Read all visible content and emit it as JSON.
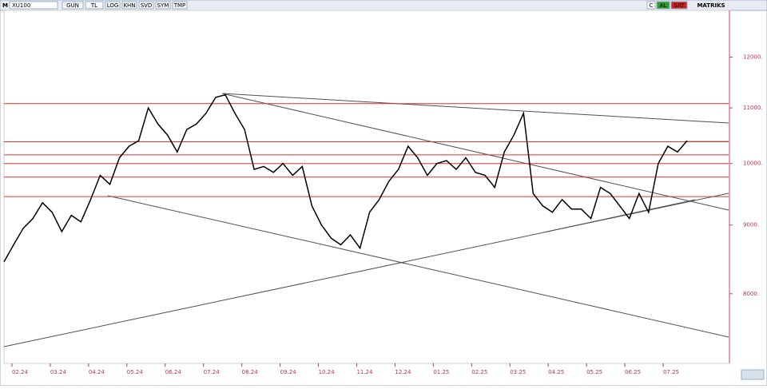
{
  "toolbar": {
    "symbol_prefix": "M",
    "symbol": "XU100",
    "buttons": [
      "GUN",
      "TL",
      "LOG",
      "KHN",
      "SVD",
      "SYM",
      "TMP"
    ],
    "right_buttons": [
      "C",
      "AL",
      "SAT"
    ],
    "brand": "MATRIKS"
  },
  "chart_data": {
    "type": "line",
    "color": "#000000",
    "log_scale": true,
    "values": [
      8450,
      8700,
      8950,
      9100,
      9350,
      9200,
      8900,
      9150,
      9050,
      9400,
      9800,
      9650,
      10100,
      10300,
      10400,
      11000,
      10700,
      10500,
      10200,
      10600,
      10700,
      10900,
      11200,
      11250,
      10900,
      10600,
      9900,
      9950,
      9850,
      10000,
      9800,
      9950,
      9300,
      9000,
      8800,
      8700,
      8850,
      8650,
      9200,
      9400,
      9700,
      9900,
      10300,
      10100,
      9800,
      10000,
      10050,
      9900,
      10100,
      9850,
      9800,
      9600,
      10200,
      10500,
      10900,
      9500,
      9300,
      9200,
      9400,
      9250,
      9250,
      9100,
      9600,
      9500,
      9300,
      9100,
      9500,
      9200,
      10000,
      10300,
      10200,
      10400
    ],
    "xticks": [
      "02.24",
      "03.24",
      "04.24",
      "05.24",
      "06.24",
      "07.24",
      "08.24",
      "09.24",
      "10.24",
      "11.24",
      "12.24",
      "01.25",
      "02.25",
      "03.25",
      "04.25",
      "05.25",
      "06.25",
      "07.25"
    ],
    "ylim": [
      7100,
      13000
    ],
    "yticks": [
      {
        "value": 8000,
        "label": "8000."
      },
      {
        "value": 9000,
        "label": "9000."
      },
      {
        "value": 10000,
        "label": "10000."
      },
      {
        "value": 11000,
        "label": "11000."
      },
      {
        "value": 12000,
        "label": "12000."
      }
    ],
    "hlines": [
      11080,
      10380,
      10150,
      10000,
      9770,
      9450
    ],
    "hline_color": "#e03030"
  }
}
